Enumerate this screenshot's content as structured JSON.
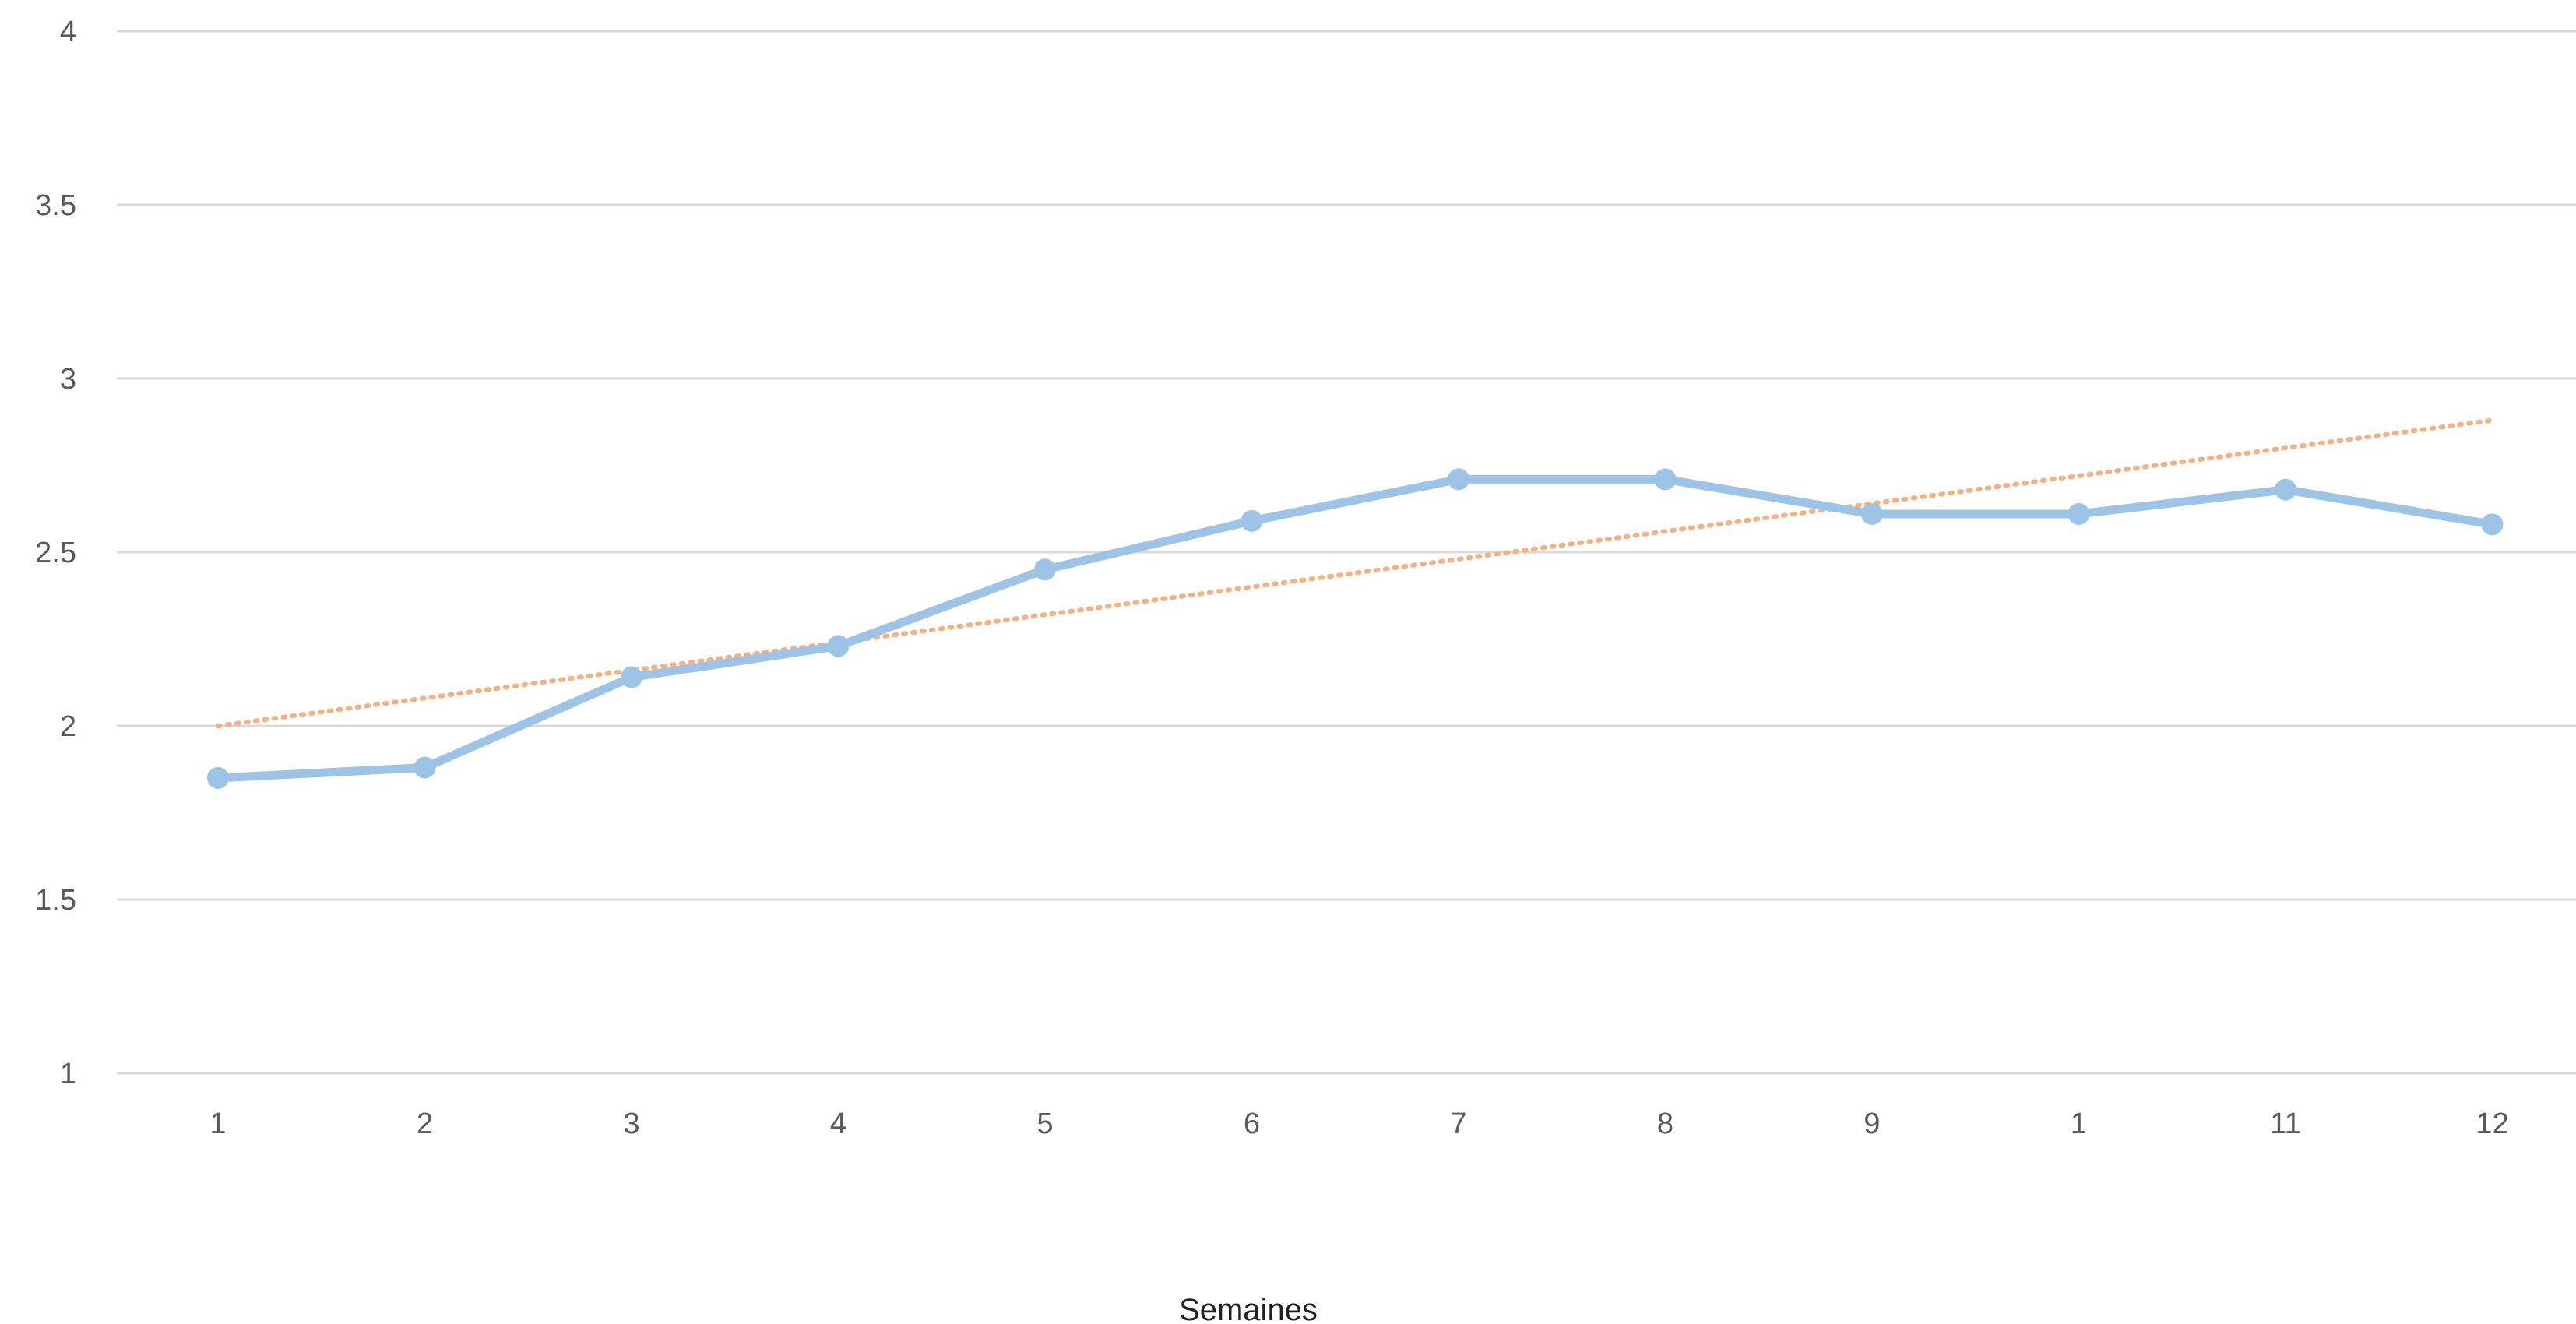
{
  "chart_data": {
    "type": "line",
    "title": "",
    "xlabel": "Semaines",
    "ylabel": "",
    "categories": [
      "1",
      "2",
      "3",
      "4",
      "5",
      "6",
      "7",
      "8",
      "9",
      "1",
      "11",
      "12"
    ],
    "series": [
      {
        "values": [
          1.85,
          1.88,
          2.14,
          2.23,
          2.45,
          2.59,
          2.71,
          2.71,
          2.61,
          2.61,
          2.68,
          2.58
        ],
        "color": "#9DC3E6",
        "markers": true
      }
    ],
    "trendline": {
      "type": "linear",
      "color": "#F4B183",
      "style": "dotted",
      "start_value": 2.0,
      "end_value": 2.88
    },
    "ylim": [
      1,
      4
    ],
    "y_ticks": [
      "1",
      "1.5",
      "2",
      "2.5",
      "3",
      "3.5",
      "4"
    ],
    "grid": true,
    "legend": "none",
    "gridline_color": "#D9D9D9"
  }
}
